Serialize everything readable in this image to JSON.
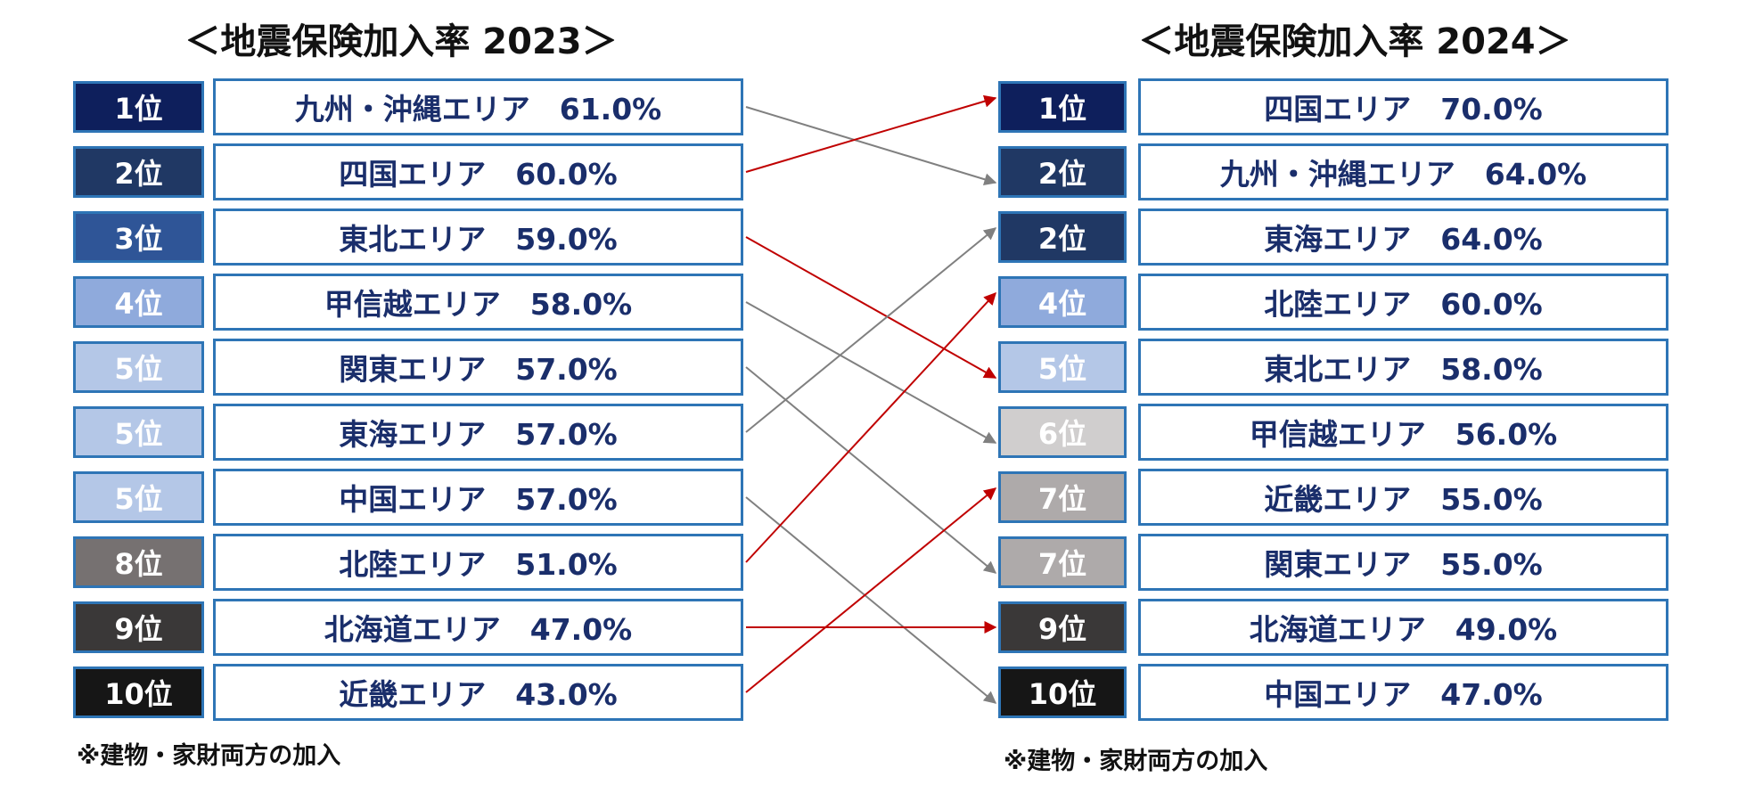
{
  "left": {
    "title": "＜地震保険加入率 2023＞",
    "rows": [
      {
        "rank": "1位",
        "text": "九州・沖縄エリア　61.0%"
      },
      {
        "rank": "2位",
        "text": "四国エリア　60.0%"
      },
      {
        "rank": "3位",
        "text": "東北エリア　59.0%"
      },
      {
        "rank": "4位",
        "text": "甲信越エリア　58.0%"
      },
      {
        "rank": "5位",
        "text": "関東エリア　57.0%"
      },
      {
        "rank": "5位",
        "text": "東海エリア　57.0%"
      },
      {
        "rank": "5位",
        "text": "中国エリア　57.0%"
      },
      {
        "rank": "8位",
        "text": "北陸エリア　51.0%"
      },
      {
        "rank": "9位",
        "text": "北海道エリア　47.0%"
      },
      {
        "rank": "10位",
        "text": "近畿エリア　43.0%"
      }
    ],
    "note": "※建物・家財両方の加入"
  },
  "right": {
    "title": "＜地震保険加入率 2024＞",
    "rows": [
      {
        "rank": "1位",
        "text": "四国エリア　70.0%"
      },
      {
        "rank": "2位",
        "text": "九州・沖縄エリア　64.0%"
      },
      {
        "rank": "2位",
        "text": "東海エリア　64.0%"
      },
      {
        "rank": "4位",
        "text": "北陸エリア　60.0%"
      },
      {
        "rank": "5位",
        "text": "東北エリア　58.0%"
      },
      {
        "rank": "6位",
        "text": "甲信越エリア　56.0%"
      },
      {
        "rank": "7位",
        "text": "近畿エリア　55.0%"
      },
      {
        "rank": "7位",
        "text": "関東エリア　55.0%"
      },
      {
        "rank": "9位",
        "text": "北海道エリア　49.0%"
      },
      {
        "rank": "10位",
        "text": "中国エリア　47.0%"
      }
    ],
    "note": "※建物・家財両方の加入"
  }
}
